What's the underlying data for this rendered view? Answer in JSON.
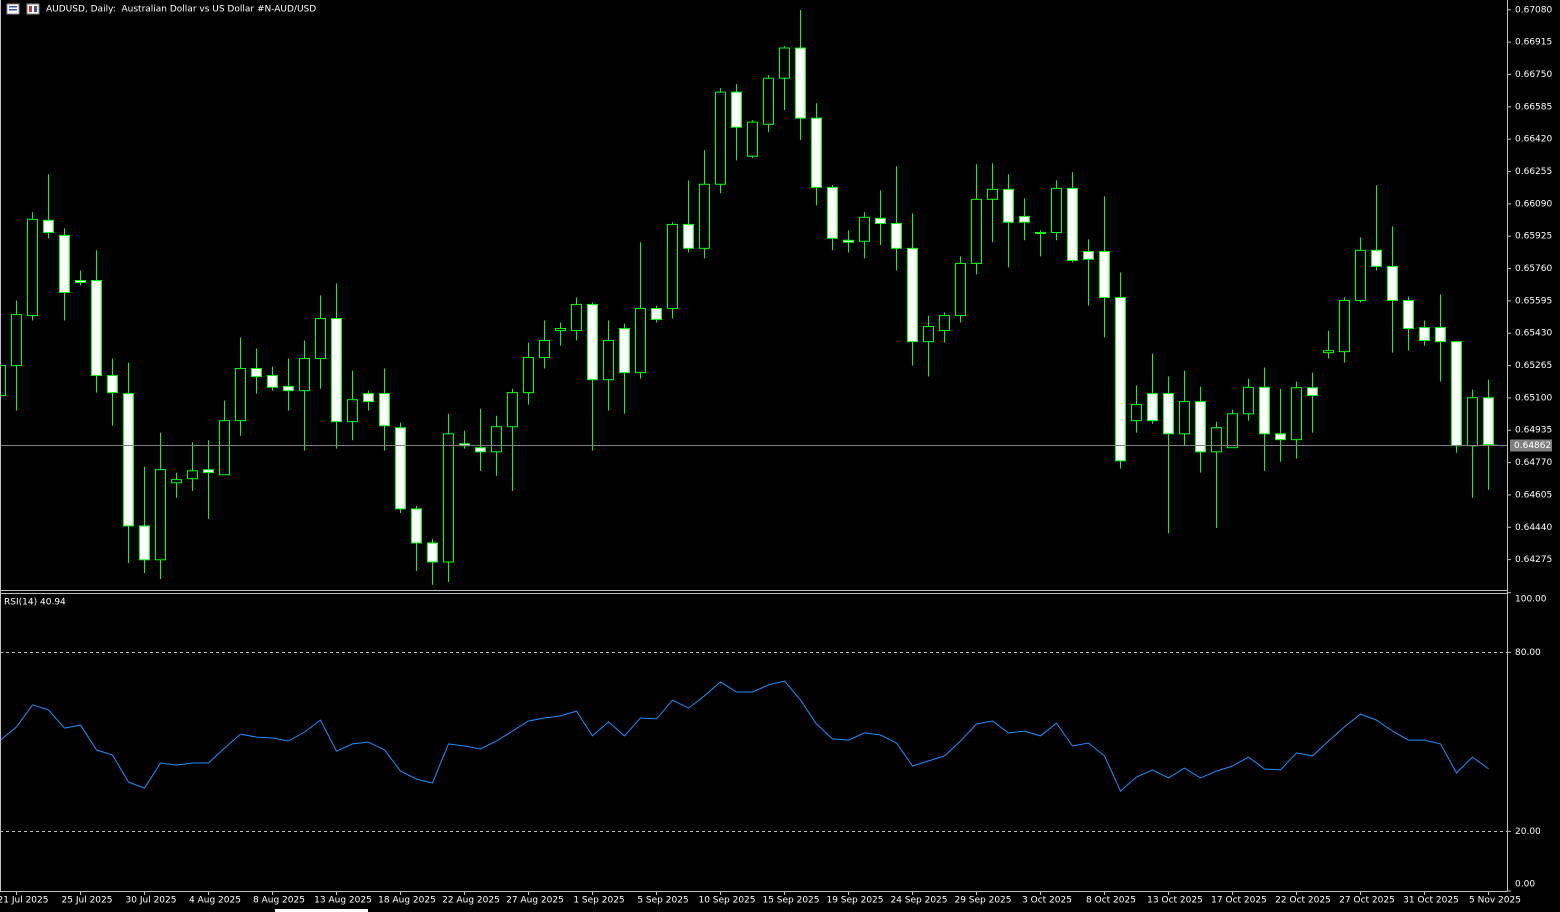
{
  "chart_data": [
    {
      "type": "candlestick",
      "title": "AUDUSD, Daily:  Australian Dollar vs US Dollar #N-AUD/USD",
      "categories": [
        null,
        "21 Jul 2025",
        null,
        null,
        null,
        "25 Jul 2025",
        null,
        null,
        null,
        "30 Jul 2025",
        null,
        null,
        null,
        "4 Aug 2025",
        null,
        null,
        null,
        "8 Aug 2025",
        null,
        null,
        null,
        "13 Aug 2025",
        null,
        null,
        null,
        "18 Aug 2025",
        null,
        null,
        null,
        "22 Aug 2025",
        null,
        null,
        null,
        "27 Aug 2025",
        null,
        null,
        null,
        "1 Sep 2025",
        null,
        null,
        null,
        "5 Sep 2025",
        null,
        null,
        null,
        "10 Sep 2025",
        null,
        null,
        null,
        "15 Sep 2025",
        null,
        null,
        null,
        "19 Sep 2025",
        null,
        null,
        null,
        "24 Sep 2025",
        null,
        null,
        null,
        "29 Sep 2025",
        null,
        null,
        null,
        "3 Oct 2025",
        null,
        null,
        null,
        "8 Oct 2025",
        null,
        null,
        null,
        "13 Oct 2025",
        null,
        null,
        null,
        "17 Oct 2025",
        null,
        null,
        null,
        "22 Oct 2025",
        null,
        null,
        null,
        "27 Oct 2025",
        null,
        null,
        null,
        "31 Oct 2025",
        null,
        null,
        null,
        "5 Nov 2025"
      ],
      "open": [
        0.65112,
        0.65265,
        0.6552,
        0.66006,
        0.65929,
        0.65699,
        0.65699,
        0.65214,
        0.65122,
        0.64447,
        0.64274,
        0.64667,
        0.64688,
        0.64734,
        0.64708,
        0.64984,
        0.6525,
        0.65214,
        0.65159,
        0.65137,
        0.65301,
        0.65505,
        0.64979,
        0.65122,
        0.65122,
        0.64948,
        0.64534,
        0.6436,
        0.64263,
        0.64866,
        0.64846,
        0.64825,
        0.64953,
        0.65127,
        0.65306,
        0.65444,
        0.65444,
        0.65577,
        0.65193,
        0.65454,
        0.65229,
        0.65556,
        0.65556,
        0.65985,
        0.65863,
        0.6619,
        0.6666,
        0.66333,
        0.66496,
        0.66731,
        0.66885,
        0.66527,
        0.66174,
        0.65904,
        0.65899,
        0.66016,
        0.6599,
        0.65863,
        0.65387,
        0.65444,
        0.6552,
        0.65786,
        0.66113,
        0.66164,
        0.66026,
        0.65939,
        0.65944,
        0.66169,
        0.65847,
        0.65847,
        0.65612,
        0.64984,
        0.65122,
        0.65122,
        0.64917,
        0.65081,
        0.64825,
        0.64846,
        0.65019,
        0.65154,
        0.64917,
        0.64887,
        0.65152,
        0.65331,
        0.65336,
        0.65597,
        0.65853,
        0.65771,
        0.65597,
        0.65459,
        0.65459,
        0.65387,
        0.64856,
        0.65101
      ],
      "high": [
        0.65393,
        0.65597,
        0.66047,
        0.66241,
        0.65965,
        0.6575,
        0.65853,
        0.65301,
        0.6528,
        0.64749,
        0.64922,
        0.64719,
        0.64874,
        0.64884,
        0.65086,
        0.65408,
        0.65352,
        0.6526,
        0.65301,
        0.65393,
        0.65623,
        0.65684,
        0.65239,
        0.65137,
        0.6525,
        0.64974,
        0.64549,
        0.64381,
        0.65019,
        0.64933,
        0.65045,
        0.65009,
        0.65147,
        0.65382,
        0.65495,
        0.65485,
        0.65612,
        0.65587,
        0.65495,
        0.65479,
        0.65894,
        0.65571,
        0.65996,
        0.6621,
        0.66364,
        0.6668,
        0.66701,
        0.66517,
        0.66747,
        0.66895,
        0.67079,
        0.66604,
        0.66185,
        0.65955,
        0.66047,
        0.66159,
        0.66282,
        0.66042,
        0.6552,
        0.65536,
        0.65822,
        0.66292,
        0.66297,
        0.66241,
        0.66118,
        0.65955,
        0.6621,
        0.66251,
        0.65909,
        0.66128,
        0.6574,
        0.65163,
        0.65326,
        0.65209,
        0.65239,
        0.65158,
        0.64979,
        0.6504,
        0.65198,
        0.65255,
        0.65147,
        0.65183,
        0.65229,
        0.65444,
        0.65612,
        0.65919,
        0.66185,
        0.65975,
        0.65617,
        0.65495,
        0.65628,
        0.65387,
        0.65142,
        0.65193
      ],
      "low": [
        0.65035,
        0.65035,
        0.65495,
        0.65914,
        0.65495,
        0.65674,
        0.65127,
        0.64958,
        0.64258,
        0.64207,
        0.64176,
        0.6459,
        0.64626,
        0.64483,
        0.64708,
        0.64907,
        0.65122,
        0.65137,
        0.65035,
        0.64831,
        0.65147,
        0.64841,
        0.64884,
        0.65035,
        0.64831,
        0.64513,
        0.64217,
        0.64146,
        0.64161,
        0.64841,
        0.64728,
        0.64703,
        0.64626,
        0.65066,
        0.6525,
        0.65367,
        0.65393,
        0.64831,
        0.65035,
        0.65019,
        0.65198,
        0.65485,
        0.65505,
        0.65842,
        0.65812,
        0.66144,
        0.66312,
        0.66323,
        0.66455,
        0.66568,
        0.66415,
        0.66082,
        0.65853,
        0.65842,
        0.65812,
        0.6588,
        0.6575,
        0.65265,
        0.65209,
        0.65382,
        0.65485,
        0.6573,
        0.65894,
        0.65766,
        0.65904,
        0.65822,
        0.65904,
        0.65791,
        0.65571,
        0.65408,
        0.64739,
        0.64922,
        0.64968,
        0.64408,
        0.64856,
        0.64719,
        0.64437,
        0.64846,
        0.64984,
        0.64728,
        0.64774,
        0.6479,
        0.64922,
        0.65301,
        0.6528,
        0.65587,
        0.6575,
        0.65331,
        0.65341,
        0.65367,
        0.65183,
        0.6482,
        0.6459,
        0.64631
      ],
      "close": [
        0.65265,
        0.65525,
        0.66011,
        0.65944,
        0.65638,
        0.65689,
        0.65214,
        0.65127,
        0.64447,
        0.64274,
        0.64734,
        0.64683,
        0.64728,
        0.64719,
        0.64984,
        0.6525,
        0.65209,
        0.65154,
        0.65137,
        0.65301,
        0.65505,
        0.64979,
        0.65091,
        0.65081,
        0.64958,
        0.64534,
        0.6436,
        0.64263,
        0.64917,
        0.64856,
        0.64825,
        0.64953,
        0.65127,
        0.65306,
        0.65393,
        0.65454,
        0.65577,
        0.65193,
        0.65393,
        0.65229,
        0.65556,
        0.655,
        0.65985,
        0.65863,
        0.6619,
        0.6666,
        0.66481,
        0.66507,
        0.66731,
        0.66885,
        0.66527,
        0.66174,
        0.65914,
        0.65894,
        0.66021,
        0.6599,
        0.65863,
        0.65387,
        0.65464,
        0.6552,
        0.65786,
        0.66113,
        0.66164,
        0.65996,
        0.65996,
        0.65944,
        0.66169,
        0.65801,
        0.65807,
        0.65612,
        0.64779,
        0.65066,
        0.64984,
        0.64917,
        0.65081,
        0.64825,
        0.64948,
        0.65019,
        0.65154,
        0.64917,
        0.64887,
        0.65152,
        0.65112,
        0.65341,
        0.65597,
        0.65853,
        0.65771,
        0.65597,
        0.65454,
        0.65393,
        0.65387,
        0.64856,
        0.65101,
        0.64862
      ],
      "up_color": "#000000",
      "down_color": "#ffffff",
      "wick_color": "#00ff00",
      "ylim": [
        0.6412,
        0.6713
      ],
      "yticks": [
        {
          "value": 0.6708,
          "label": "0.67080"
        },
        0.66915,
        {
          "value": 0.6675,
          "label": "0.66750"
        },
        0.66585,
        {
          "value": 0.6642,
          "label": "0.66420"
        },
        0.66255,
        {
          "value": 0.6609,
          "label": "0.66090"
        },
        0.65925,
        {
          "value": 0.6576,
          "label": "0.65760"
        },
        0.65595,
        {
          "value": 0.6543,
          "label": "0.65430"
        },
        0.65265,
        {
          "value": 0.651,
          "label": "0.65100"
        },
        0.64935,
        {
          "value": 0.6477,
          "label": "0.64770"
        },
        0.64605,
        {
          "value": 0.6444,
          "label": "0.64440"
        },
        0.64275
      ],
      "grid": false
    },
    {
      "type": "line",
      "title": "RSI(14)",
      "color": "#1e90ff",
      "values": [
        50.6,
        55.0,
        62.4,
        60.7,
        54.6,
        55.6,
        47.3,
        45.6,
        36.5,
        34.5,
        42.9,
        42.2,
        42.9,
        42.9,
        47.9,
        52.6,
        51.6,
        51.3,
        50.3,
        53.3,
        57.3,
        46.9,
        49.3,
        49.9,
        47.3,
        40.2,
        37.5,
        36.2,
        49.3,
        48.6,
        47.6,
        50.3,
        53.6,
        57.0,
        58.0,
        58.7,
        60.3,
        52.0,
        56.7,
        52.0,
        58.0,
        57.7,
        64.0,
        61.3,
        65.4,
        70.1,
        66.7,
        66.7,
        69.1,
        70.4,
        64.0,
        56.0,
        51.0,
        50.6,
        53.0,
        52.3,
        49.6,
        41.9,
        43.6,
        45.3,
        50.3,
        56.0,
        57.0,
        53.0,
        53.6,
        52.0,
        56.3,
        48.6,
        49.6,
        45.3,
        33.5,
        38.2,
        40.6,
        37.9,
        41.2,
        37.9,
        40.2,
        41.9,
        44.9,
        40.9,
        40.6,
        46.3,
        45.3,
        50.3,
        55.0,
        59.3,
        57.3,
        53.6,
        50.6,
        50.6,
        49.3,
        39.6,
        44.9,
        40.94
      ],
      "ylim": [
        0,
        100
      ],
      "yticks": [
        {
          "value": 100,
          "label": "100.00"
        },
        {
          "value": 80,
          "label": "80.00"
        },
        {
          "value": 20,
          "label": "20.00"
        },
        {
          "value": 0,
          "label": "0.00"
        }
      ],
      "levels": [
        80,
        20
      ]
    }
  ]
}
